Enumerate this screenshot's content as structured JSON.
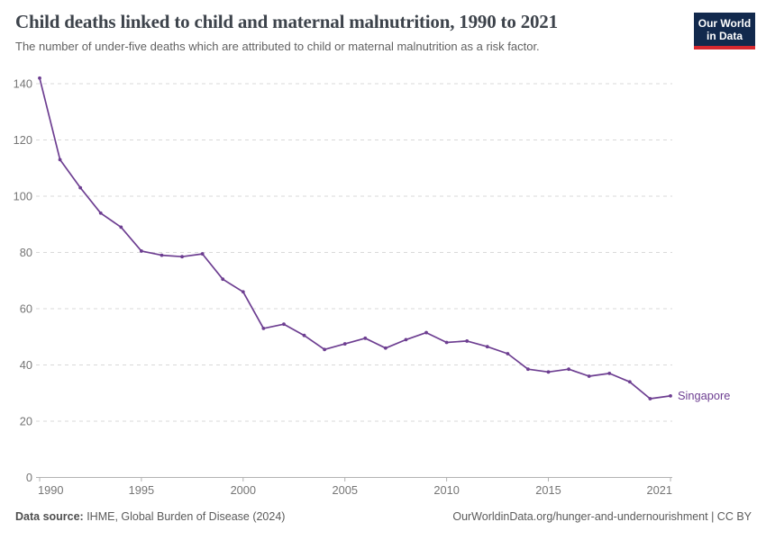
{
  "header": {
    "title": "Child deaths linked to child and maternal malnutrition, 1990 to 2021",
    "subtitle": "The number of under-five deaths which are attributed to child or maternal malnutrition as a risk factor.",
    "logo": {
      "line1": "Our World",
      "line2": "in Data"
    }
  },
  "chart_data": {
    "type": "line",
    "title": "Child deaths linked to child and maternal malnutrition, 1990 to 2021",
    "xlabel": "",
    "ylabel": "",
    "xlim": [
      1990,
      2021
    ],
    "ylim": [
      0,
      142
    ],
    "x_ticks": [
      1990,
      1995,
      2000,
      2005,
      2010,
      2015,
      2021
    ],
    "y_ticks": [
      0,
      20,
      40,
      60,
      80,
      100,
      120,
      140
    ],
    "grid": "horizontal-dashed",
    "point_markers": true,
    "legend_position": "end-of-line-label",
    "series": [
      {
        "name": "Singapore",
        "color": "#6D3E91",
        "x": [
          1990,
          1991,
          1992,
          1993,
          1994,
          1995,
          1996,
          1997,
          1998,
          1999,
          2000,
          2001,
          2002,
          2003,
          2004,
          2005,
          2006,
          2007,
          2008,
          2009,
          2010,
          2011,
          2012,
          2013,
          2014,
          2015,
          2016,
          2017,
          2018,
          2019,
          2020,
          2021
        ],
        "values": [
          142,
          113,
          103,
          94,
          89,
          80.5,
          79,
          78.5,
          79.5,
          70.5,
          66,
          53,
          54.5,
          50.5,
          45.5,
          47.5,
          49.5,
          46,
          49,
          51.5,
          48,
          48.5,
          46.5,
          44,
          38.5,
          37.5,
          38.5,
          36,
          37,
          34,
          28,
          29
        ]
      }
    ]
  },
  "footer": {
    "source_bold": "Data source:",
    "source_rest": " IHME, Global Burden of Disease (2024)",
    "credit": "OurWorldinData.org/hunger-and-undernourishment | CC BY"
  },
  "colors": {
    "line": "#6D3E91",
    "grid": "#d9d9d9",
    "axis": "#b3b3b3",
    "tick_label": "#757575",
    "logo_bg": "#12294d",
    "logo_accent": "#d7282f"
  }
}
